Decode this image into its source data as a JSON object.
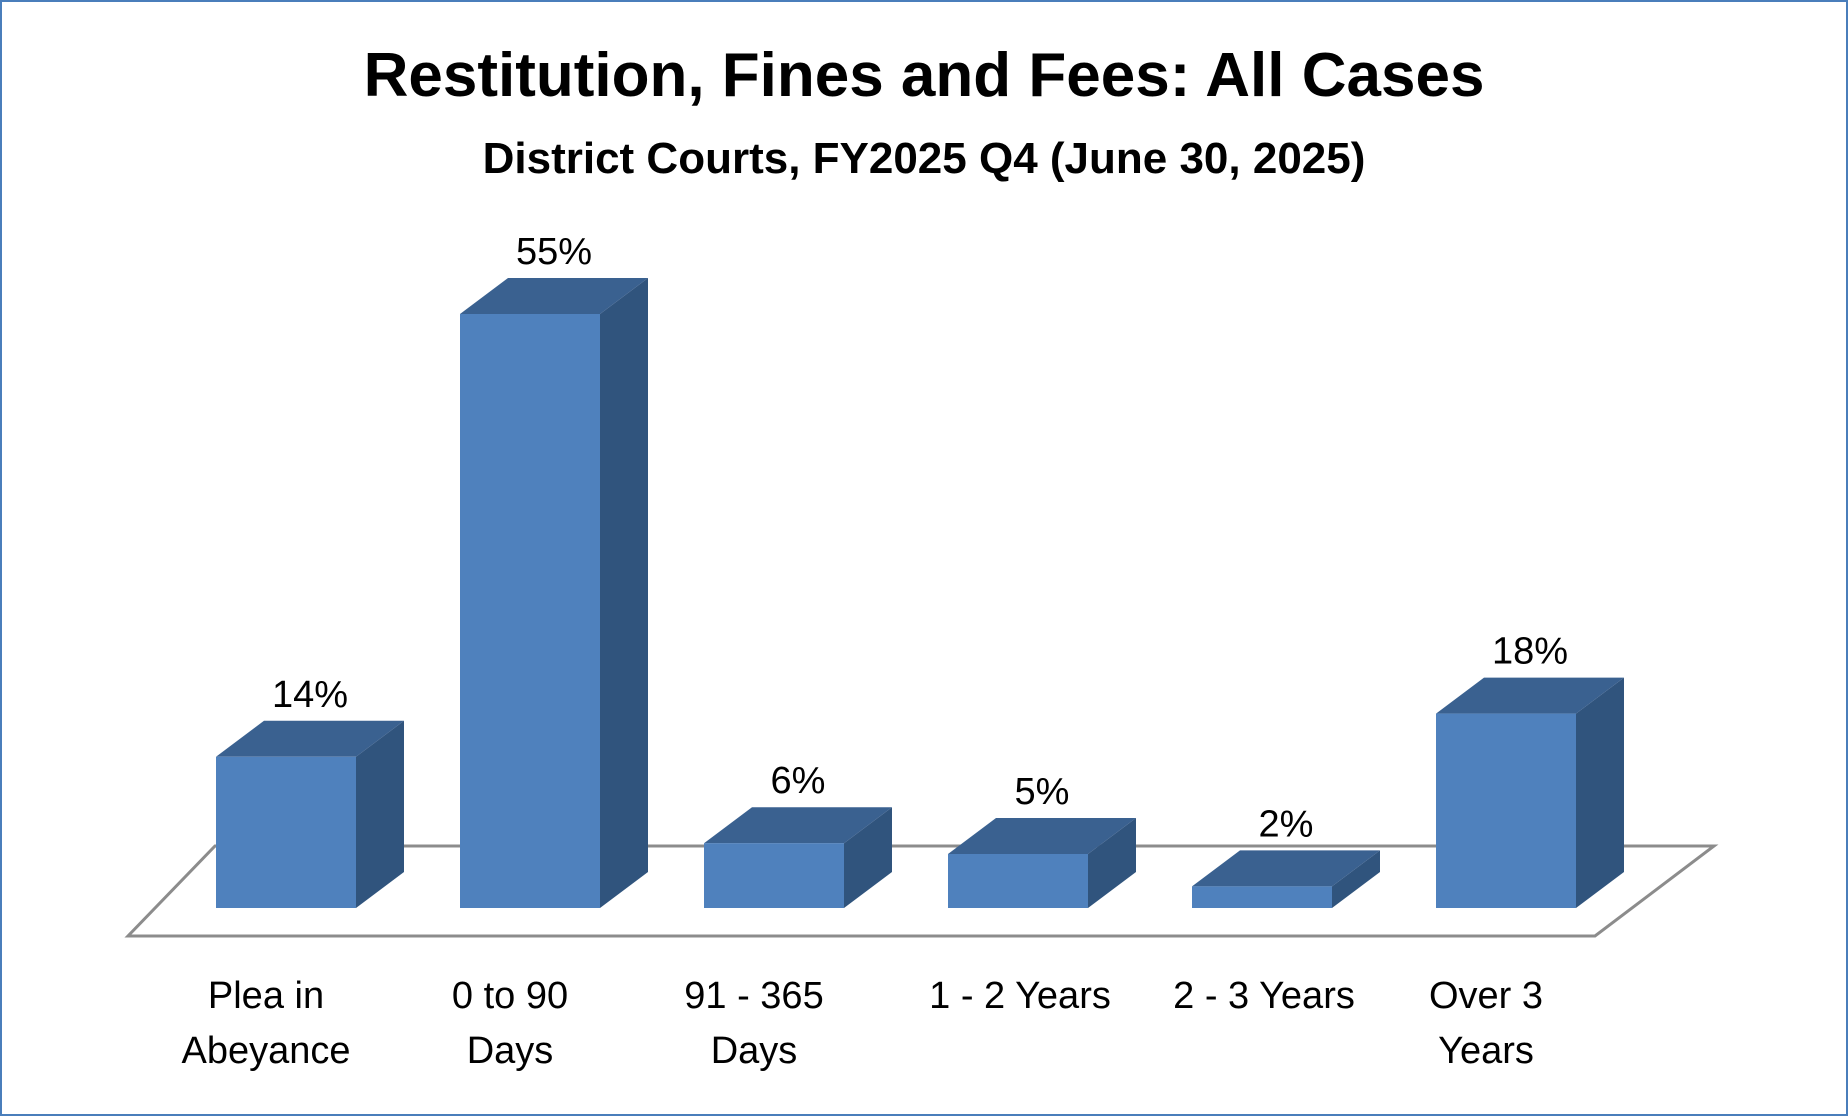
{
  "chart_data": {
    "type": "bar",
    "title": "Restitution, Fines and Fees: All Cases",
    "subtitle": "District Courts, FY2025 Q4 (June 30, 2025)",
    "categories": [
      [
        "Plea in",
        "Abeyance"
      ],
      [
        "0 to 90",
        "Days"
      ],
      [
        "91 - 365",
        "Days"
      ],
      [
        "1 - 2 Years"
      ],
      [
        "2 - 3 Years"
      ],
      [
        "Over 3",
        "Years"
      ]
    ],
    "values": [
      14,
      55,
      6,
      5,
      2,
      18
    ],
    "data_labels": [
      "14%",
      "55%",
      "6%",
      "5%",
      "2%",
      "18%"
    ],
    "unit": "%",
    "ylim": [
      0,
      60
    ],
    "grid": false,
    "legend": "none",
    "style": "3d-column",
    "colors": {
      "front": "#4f81bd",
      "top": "#3a6190",
      "side": "#30547d",
      "floor": "#8c8c8c",
      "border": "#4a7ebb"
    }
  }
}
